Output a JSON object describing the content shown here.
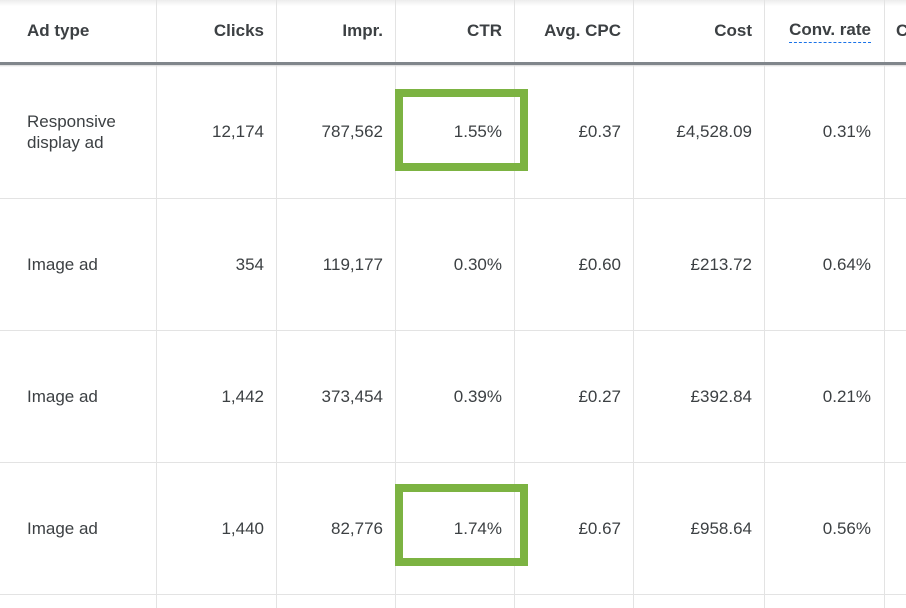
{
  "table": {
    "columns": [
      {
        "key": "ad_type",
        "label": "Ad type"
      },
      {
        "key": "clicks",
        "label": "Clicks"
      },
      {
        "key": "impr",
        "label": "Impr."
      },
      {
        "key": "ctr",
        "label": "CTR"
      },
      {
        "key": "avg_cpc",
        "label": "Avg. CPC"
      },
      {
        "key": "cost",
        "label": "Cost"
      },
      {
        "key": "conv_rate",
        "label": "Conv. rate"
      },
      {
        "key": "next",
        "label": "C"
      }
    ],
    "rows": [
      {
        "ad_type": "Responsive display ad",
        "clicks": "12,174",
        "impr": "787,562",
        "ctr": "1.55%",
        "avg_cpc": "£0.37",
        "cost": "£4,528.09",
        "conv_rate": "0.31%",
        "ctr_highlighted": true
      },
      {
        "ad_type": "Image ad",
        "clicks": "354",
        "impr": "119,177",
        "ctr": "0.30%",
        "avg_cpc": "£0.60",
        "cost": "£213.72",
        "conv_rate": "0.64%",
        "ctr_highlighted": false
      },
      {
        "ad_type": "Image ad",
        "clicks": "1,442",
        "impr": "373,454",
        "ctr": "0.39%",
        "avg_cpc": "£0.27",
        "cost": "£392.84",
        "conv_rate": "0.21%",
        "ctr_highlighted": false
      },
      {
        "ad_type": "Image ad",
        "clicks": "1,440",
        "impr": "82,776",
        "ctr": "1.74%",
        "avg_cpc": "£0.67",
        "cost": "£958.64",
        "conv_rate": "0.56%",
        "ctr_highlighted": true
      }
    ]
  },
  "colors": {
    "highlight": "#7cb342",
    "text": "#3c4043",
    "grid": "#e3e3e3",
    "header_rule": "#80868b",
    "link_underline": "#1a73e8"
  }
}
